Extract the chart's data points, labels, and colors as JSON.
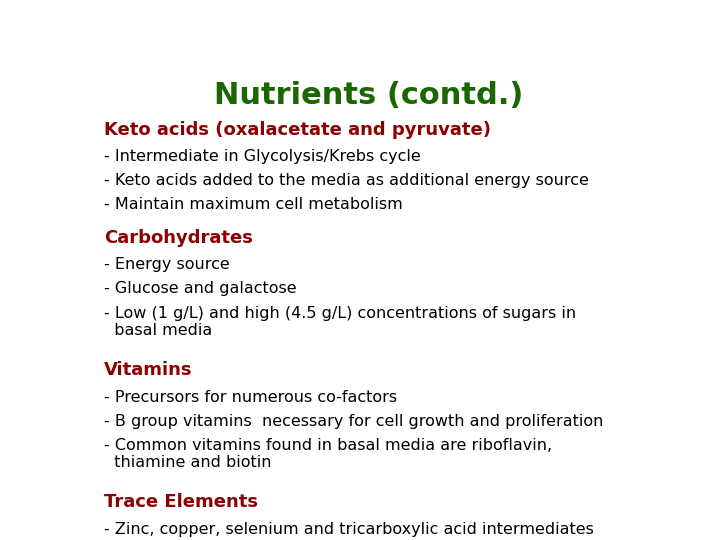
{
  "title": "Nutrients (contd.)",
  "title_color": "#1a6600",
  "title_fontsize": 22,
  "background_color": "#ffffff",
  "heading_color": "#8b0000",
  "body_color": "#000000",
  "heading_fontsize": 13,
  "body_fontsize": 11.5,
  "sections": [
    {
      "heading": "Keto acids (oxalacetate and pyruvate)",
      "bullets": [
        "- Intermediate in Glycolysis/Krebs cycle",
        "- Keto acids added to the media as additional energy source",
        "- Maintain maximum cell metabolism"
      ]
    },
    {
      "heading": "Carbohydrates",
      "bullets": [
        "- Energy source",
        "- Glucose and galactose",
        "- Low (1 g/L) and high (4.5 g/L) concentrations of sugars in\n  basal media"
      ]
    },
    {
      "heading": "Vitamins",
      "bullets": [
        "- Precursors for numerous co-factors",
        "- B group vitamins  necessary for cell growth and proliferation",
        "- Common vitamins found in basal media are riboflavin,\n  thiamine and biotin"
      ]
    },
    {
      "heading": "Trace Elements",
      "bullets": [
        "- Zinc, copper, selenium and tricarboxylic acid intermediates"
      ]
    }
  ]
}
